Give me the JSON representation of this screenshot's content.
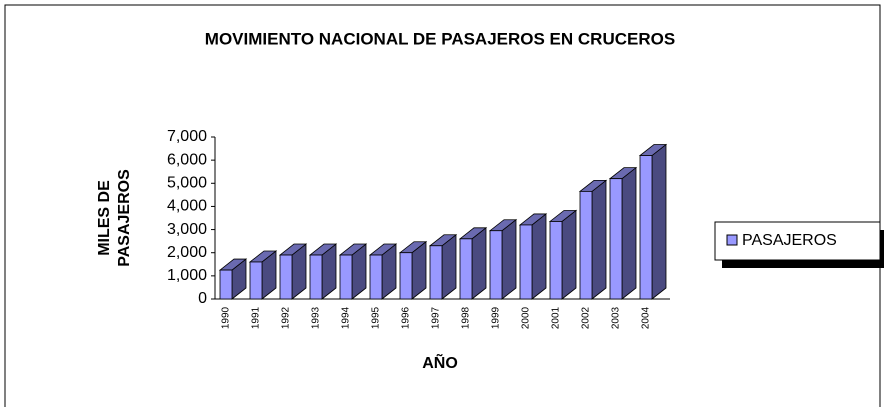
{
  "chart_data": {
    "type": "bar3d",
    "title": "MOVIMIENTO NACIONAL DE PASAJEROS EN CRUCEROS",
    "xlabel": "AÑO",
    "ylabel": [
      "MILES DE",
      "PASAJEROS"
    ],
    "categories": [
      "1990",
      "1991",
      "1992",
      "1993",
      "1994",
      "1995",
      "1996",
      "1997",
      "1998",
      "1999",
      "2000",
      "2001",
      "2002",
      "2003",
      "2004"
    ],
    "series": [
      {
        "name": "PASAJEROS",
        "color": "#9999ff",
        "values": [
          1250,
          1600,
          1900,
          1900,
          1900,
          1900,
          2000,
          2300,
          2600,
          2950,
          3200,
          3350,
          4650,
          5200,
          6200
        ]
      }
    ],
    "ylim": [
      0,
      7000
    ],
    "yticks": [
      0,
      {
        "value": 1000,
        "label": "1,000"
      },
      {
        "value": 2000,
        "label": "2,000"
      },
      {
        "value": 3000,
        "label": "3,000"
      },
      {
        "value": 4000,
        "label": "4,000"
      },
      {
        "value": 5000,
        "label": "5,000"
      },
      {
        "value": 6000,
        "label": "6,000"
      },
      {
        "value": 7000,
        "label": "7,000"
      }
    ],
    "legend": "right"
  }
}
